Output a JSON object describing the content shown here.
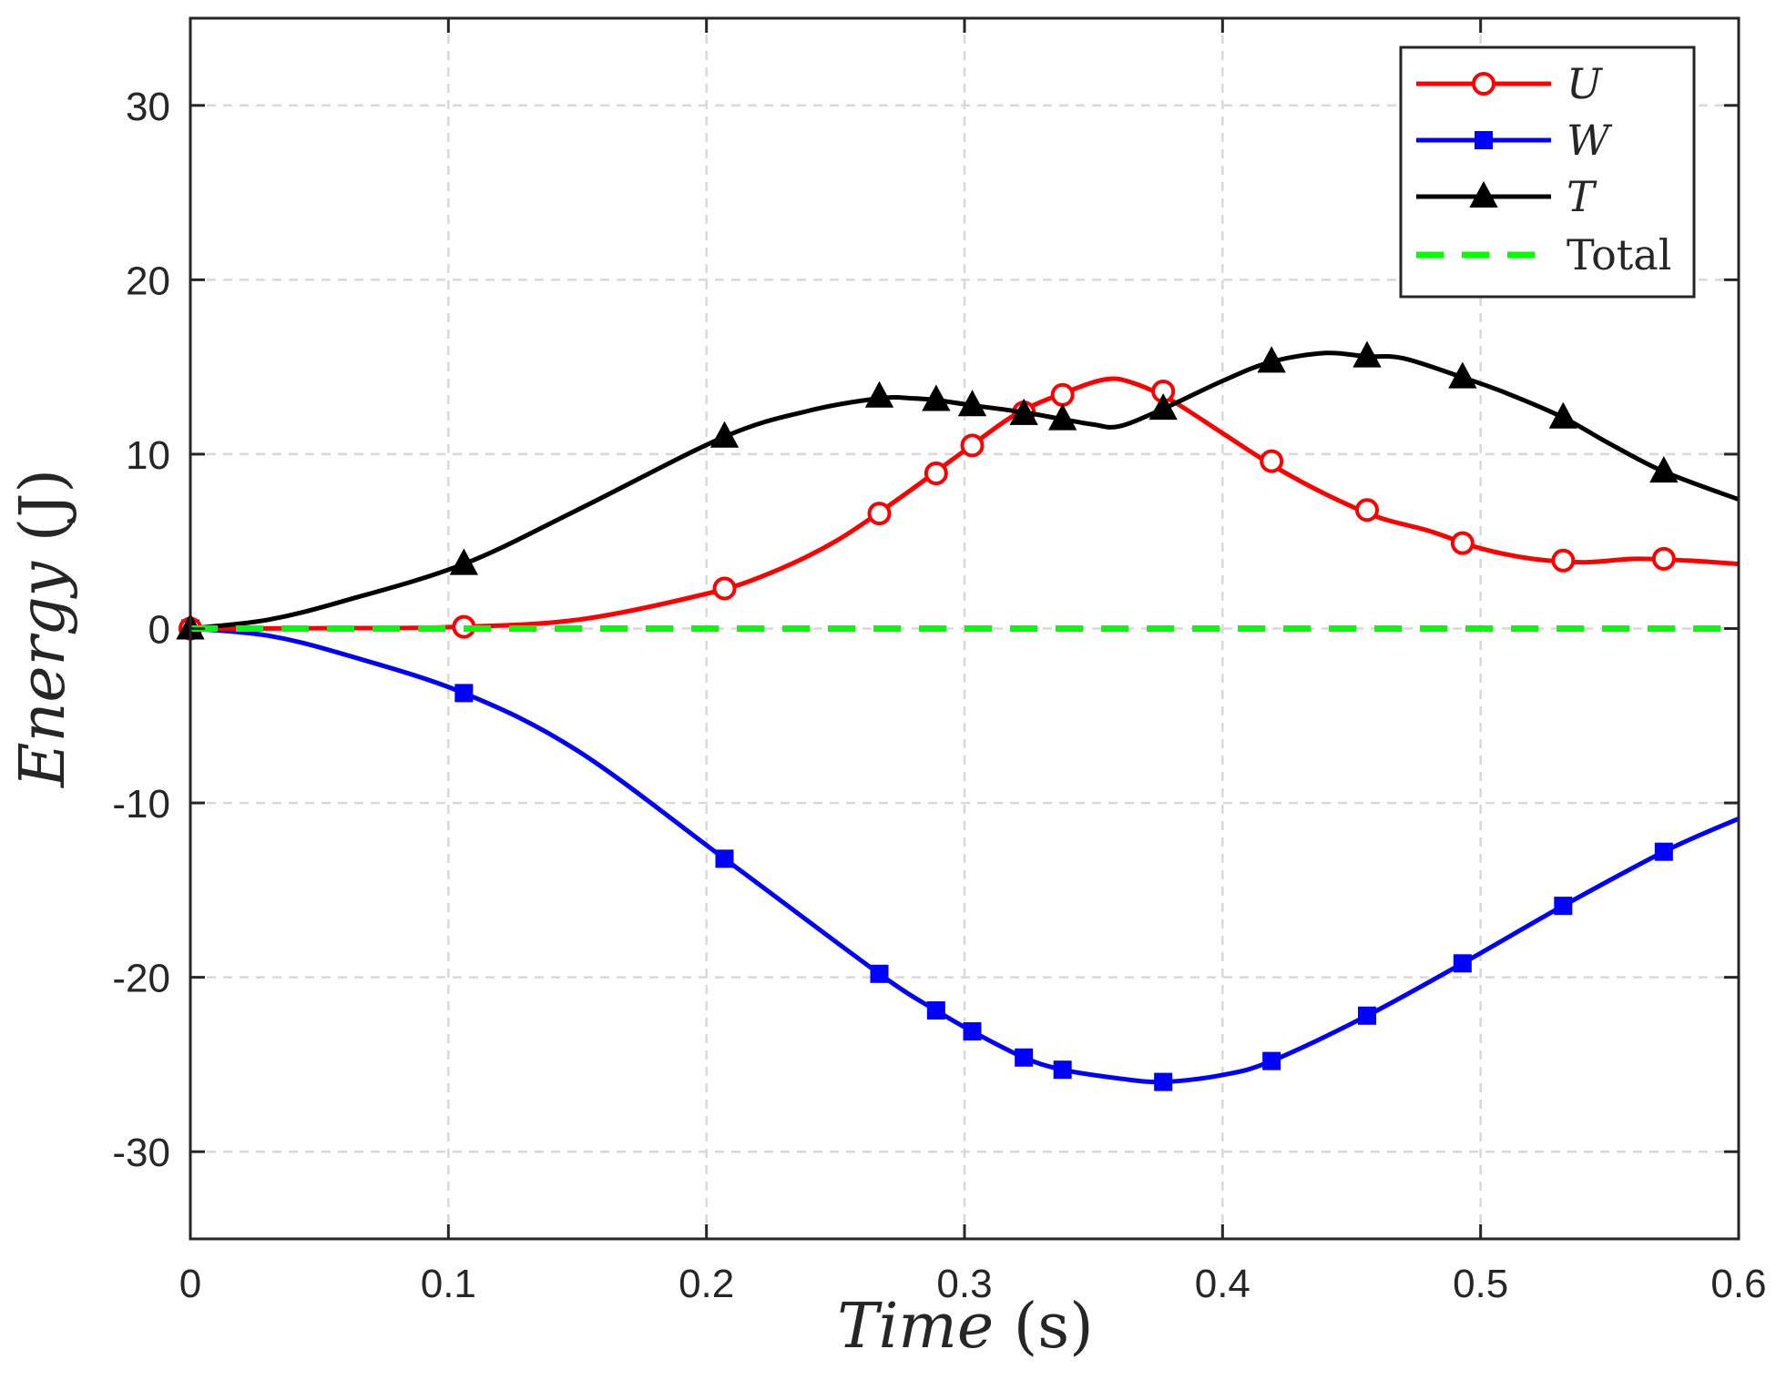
{
  "chart_data": {
    "type": "line",
    "title": "",
    "xlabel": {
      "var": "Time",
      "unit": "(s)"
    },
    "ylabel": {
      "var": "Energy",
      "unit": "(J)"
    },
    "xlim": [
      0,
      0.6
    ],
    "ylim": [
      -35,
      35
    ],
    "grid": true,
    "legend_position": "top-right",
    "xticks": [
      0,
      0.1,
      0.2,
      0.3,
      0.4,
      0.5,
      0.6
    ],
    "xtick_labels": [
      "0",
      "0.1",
      "0.2",
      "0.3",
      "0.4",
      "0.5",
      "0.6"
    ],
    "yticks": [
      -30,
      -20,
      -10,
      0,
      10,
      20,
      30
    ],
    "ytick_labels": [
      "-30",
      "-20",
      "-10",
      "0",
      "10",
      "20",
      "30"
    ],
    "series": [
      {
        "name": "U",
        "italic": true,
        "color": "#ff0000",
        "marker": "circle",
        "dash": false,
        "curve": [
          [
            0,
            0
          ],
          [
            0.05,
            0.02
          ],
          [
            0.1,
            0.08
          ],
          [
            0.15,
            0.5
          ],
          [
            0.2,
            2.0
          ],
          [
            0.225,
            3.2
          ],
          [
            0.25,
            5.0
          ],
          [
            0.275,
            7.5
          ],
          [
            0.3,
            10.2
          ],
          [
            0.32,
            12.3
          ],
          [
            0.34,
            13.6
          ],
          [
            0.355,
            14.3
          ],
          [
            0.365,
            14.1
          ],
          [
            0.38,
            13.1
          ],
          [
            0.4,
            11.2
          ],
          [
            0.42,
            9.3
          ],
          [
            0.44,
            7.7
          ],
          [
            0.46,
            6.4
          ],
          [
            0.48,
            5.6
          ],
          [
            0.5,
            4.6
          ],
          [
            0.52,
            4.0
          ],
          [
            0.54,
            3.8
          ],
          [
            0.56,
            4.0
          ],
          [
            0.58,
            3.9
          ],
          [
            0.6,
            3.7
          ]
        ],
        "markers": [
          [
            0,
            0
          ],
          [
            0.106,
            0.1
          ],
          [
            0.207,
            2.3
          ],
          [
            0.267,
            6.6
          ],
          [
            0.289,
            8.9
          ],
          [
            0.303,
            10.5
          ],
          [
            0.323,
            12.4
          ],
          [
            0.338,
            13.4
          ],
          [
            0.377,
            13.6
          ],
          [
            0.419,
            9.6
          ],
          [
            0.456,
            6.8
          ],
          [
            0.493,
            4.9
          ],
          [
            0.532,
            3.9
          ],
          [
            0.571,
            4.0
          ]
        ]
      },
      {
        "name": "W",
        "italic": true,
        "color": "#0000ff",
        "marker": "square",
        "dash": false,
        "curve": [
          [
            0,
            0
          ],
          [
            0.03,
            -0.4
          ],
          [
            0.06,
            -1.5
          ],
          [
            0.106,
            -3.7
          ],
          [
            0.15,
            -7.0
          ],
          [
            0.207,
            -13.2
          ],
          [
            0.267,
            -19.8
          ],
          [
            0.289,
            -21.9
          ],
          [
            0.303,
            -23.1
          ],
          [
            0.323,
            -24.6
          ],
          [
            0.338,
            -25.3
          ],
          [
            0.36,
            -25.8
          ],
          [
            0.377,
            -26.0
          ],
          [
            0.4,
            -25.6
          ],
          [
            0.419,
            -24.8
          ],
          [
            0.456,
            -22.2
          ],
          [
            0.493,
            -19.2
          ],
          [
            0.532,
            -15.9
          ],
          [
            0.571,
            -12.8
          ],
          [
            0.6,
            -10.9
          ]
        ],
        "markers": [
          [
            0,
            0
          ],
          [
            0.106,
            -3.7
          ],
          [
            0.207,
            -13.2
          ],
          [
            0.267,
            -19.8
          ],
          [
            0.289,
            -21.9
          ],
          [
            0.303,
            -23.1
          ],
          [
            0.323,
            -24.6
          ],
          [
            0.338,
            -25.3
          ],
          [
            0.377,
            -26.0
          ],
          [
            0.419,
            -24.8
          ],
          [
            0.456,
            -22.2
          ],
          [
            0.493,
            -19.2
          ],
          [
            0.532,
            -15.9
          ],
          [
            0.571,
            -12.8
          ]
        ]
      },
      {
        "name": "T",
        "italic": true,
        "color": "#000000",
        "marker": "triangle",
        "dash": false,
        "curve": [
          [
            0,
            0
          ],
          [
            0.03,
            0.5
          ],
          [
            0.06,
            1.6
          ],
          [
            0.106,
            3.7
          ],
          [
            0.15,
            6.8
          ],
          [
            0.207,
            11.0
          ],
          [
            0.24,
            12.5
          ],
          [
            0.267,
            13.2
          ],
          [
            0.28,
            13.2
          ],
          [
            0.289,
            13.1
          ],
          [
            0.303,
            12.8
          ],
          [
            0.323,
            12.4
          ],
          [
            0.338,
            12.0
          ],
          [
            0.35,
            11.7
          ],
          [
            0.36,
            11.6
          ],
          [
            0.377,
            12.6
          ],
          [
            0.4,
            14.2
          ],
          [
            0.419,
            15.3
          ],
          [
            0.44,
            15.8
          ],
          [
            0.456,
            15.6
          ],
          [
            0.47,
            15.5
          ],
          [
            0.493,
            14.4
          ],
          [
            0.51,
            13.5
          ],
          [
            0.532,
            12.1
          ],
          [
            0.55,
            10.6
          ],
          [
            0.571,
            9.0
          ],
          [
            0.6,
            7.4
          ]
        ],
        "markers": [
          [
            0,
            0
          ],
          [
            0.106,
            3.7
          ],
          [
            0.207,
            11.0
          ],
          [
            0.267,
            13.3
          ],
          [
            0.289,
            13.1
          ],
          [
            0.303,
            12.8
          ],
          [
            0.323,
            12.3
          ],
          [
            0.338,
            12.0
          ],
          [
            0.377,
            12.6
          ],
          [
            0.419,
            15.3
          ],
          [
            0.456,
            15.6
          ],
          [
            0.493,
            14.4
          ],
          [
            0.532,
            12.1
          ],
          [
            0.571,
            9.0
          ]
        ]
      },
      {
        "name": "Total",
        "italic": false,
        "color": "#00ff00",
        "marker": "none",
        "dash": true,
        "curve": [
          [
            0,
            0
          ],
          [
            0.6,
            0
          ]
        ],
        "markers": []
      }
    ]
  }
}
